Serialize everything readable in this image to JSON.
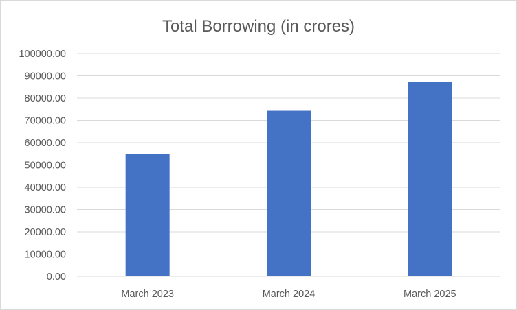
{
  "chart_data": {
    "type": "bar",
    "title": "Total Borrowing (in crores)",
    "xlabel": "",
    "ylabel": "",
    "categories": [
      "March 2023",
      "March 2024",
      "March 2025"
    ],
    "values": [
      54800,
      74300,
      87200
    ],
    "ylim": [
      0,
      100000
    ],
    "yticks": [
      0,
      10000,
      20000,
      30000,
      40000,
      50000,
      60000,
      70000,
      80000,
      90000,
      100000
    ],
    "ytick_labels": [
      "0.00",
      "10000.00",
      "20000.00",
      "30000.00",
      "40000.00",
      "50000.00",
      "60000.00",
      "70000.00",
      "80000.00",
      "90000.00",
      "100000.00"
    ],
    "grid": true,
    "legend": "none",
    "colors": {
      "bar": "#4472c4",
      "grid": "#d9d9d9",
      "text": "#595959",
      "border": "#d9d9d9"
    }
  }
}
